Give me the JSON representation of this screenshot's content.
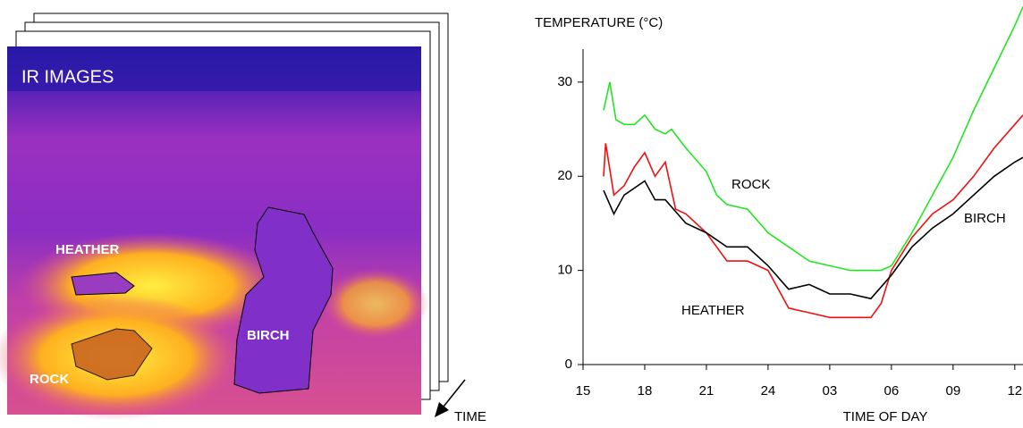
{
  "ir_image": {
    "title": "IR IMAGES",
    "labels": [
      "HEATHER",
      "ROCK",
      "BIRCH"
    ],
    "time_label": "TIME"
  },
  "chart_data": {
    "type": "line",
    "y_label": "TEMPERATURE (°C)",
    "x_label": "TIME OF DAY",
    "xlim": [
      15,
      36.4
    ],
    "ylim": [
      0,
      33.5
    ],
    "xticks": [
      15,
      18,
      21,
      24,
      {
        "value": 27,
        "label": "03"
      },
      {
        "value": 30,
        "label": "06"
      },
      {
        "value": 33,
        "label": "09"
      },
      {
        "value": 36,
        "label": "12"
      }
    ],
    "yticks": [
      0,
      10,
      20,
      30
    ],
    "series": [
      {
        "name": "ROCK",
        "color": "#22e622",
        "x": [
          16,
          16.3,
          16.6,
          17,
          17.5,
          18,
          18.5,
          19,
          19.3,
          20,
          21,
          21.5,
          22,
          23,
          24,
          25,
          26,
          27,
          28,
          29,
          29.5,
          30,
          31,
          32,
          33,
          34,
          35,
          36,
          36.4
        ],
        "values": [
          27,
          30,
          26,
          25.5,
          25.5,
          26.5,
          25,
          24.5,
          25,
          23,
          20.5,
          18,
          17,
          16.5,
          14,
          12.5,
          11,
          10.5,
          10,
          10,
          10,
          10.5,
          14,
          18,
          22,
          27,
          31.5,
          36,
          38
        ]
      },
      {
        "name": "HEATHER",
        "color": "#ee1111",
        "x": [
          16,
          16.1,
          16.5,
          17,
          17.5,
          18,
          18.5,
          19,
          19.5,
          20,
          21,
          21.5,
          22,
          23,
          24,
          25,
          26,
          27,
          28,
          29,
          29.5,
          30,
          31,
          32,
          33,
          34,
          35,
          36,
          36.4
        ],
        "values": [
          20,
          23.5,
          18,
          19,
          21,
          22.5,
          20,
          21.5,
          16.5,
          16,
          14,
          12.5,
          11,
          11,
          10,
          6,
          5.5,
          5,
          5,
          5,
          6.5,
          10,
          13.5,
          16,
          17.5,
          20,
          23,
          25.5,
          26.5
        ]
      },
      {
        "name": "BIRCH",
        "color": "#000000",
        "x": [
          16,
          16.5,
          17,
          18,
          18.5,
          19,
          20,
          21,
          22,
          23,
          24,
          25,
          26,
          27,
          28,
          29,
          30,
          31,
          32,
          33,
          34,
          35,
          36,
          36.4
        ],
        "values": [
          18.5,
          16,
          18,
          19.5,
          17.5,
          17.5,
          15,
          14,
          12.5,
          12.5,
          10.5,
          8,
          8.5,
          7.5,
          7.5,
          7,
          9.5,
          12.5,
          14.5,
          16,
          18,
          20,
          21.5,
          22
        ]
      }
    ]
  }
}
